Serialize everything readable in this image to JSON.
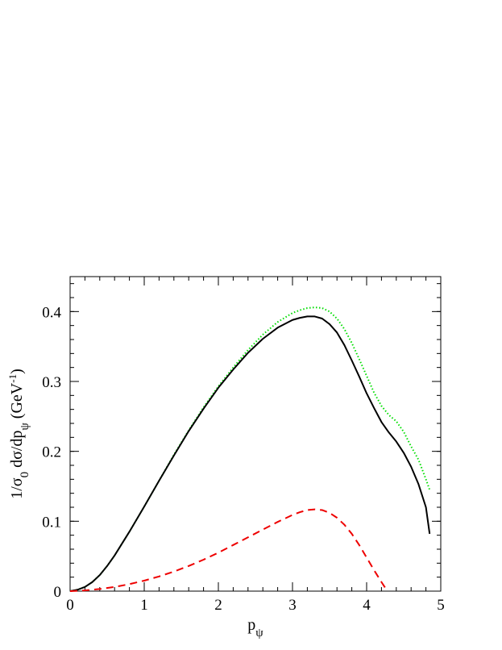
{
  "chart_data": {
    "type": "line",
    "title": "",
    "xlabel": {
      "text": "p",
      "sub": "ψ"
    },
    "ylabel": {
      "parts": [
        {
          "t": "1/σ",
          "s": "normal"
        },
        {
          "t": "0",
          "s": "sub"
        },
        {
          "t": " dσ/dp",
          "s": "normal"
        },
        {
          "t": "ψ",
          "s": "sub"
        },
        {
          "t": " (GeV",
          "s": "normal"
        },
        {
          "t": "-1",
          "s": "sup"
        },
        {
          "t": ")",
          "s": "normal"
        }
      ]
    },
    "xlim": [
      0,
      5
    ],
    "ylim": [
      0,
      0.45
    ],
    "x_ticks": [
      0,
      1,
      2,
      3,
      4,
      5
    ],
    "x_tick_labels": [
      "0",
      "1",
      "2",
      "3",
      "4",
      "5"
    ],
    "y_ticks": [
      0,
      0.1,
      0.2,
      0.3,
      0.4
    ],
    "y_tick_labels": [
      "0",
      "0.1",
      "0.2",
      "0.3",
      "0.4"
    ],
    "x_minor_step": 0.2,
    "y_minor_step": 0.02,
    "grid": false,
    "legend": "none",
    "series": [
      {
        "color": "#00dd00",
        "dash": "dotted",
        "x": [
          0,
          0.1,
          0.2,
          0.3,
          0.4,
          0.5,
          0.6,
          0.7,
          0.8,
          0.9,
          1.0,
          1.2,
          1.4,
          1.6,
          1.8,
          2.0,
          2.2,
          2.4,
          2.6,
          2.8,
          3.0,
          3.1,
          3.2,
          3.3,
          3.4,
          3.5,
          3.6,
          3.7,
          3.8,
          3.9,
          4.0,
          4.1,
          4.2,
          4.3,
          4.4,
          4.5,
          4.6,
          4.7,
          4.8,
          4.85
        ],
        "y": [
          0,
          0.002,
          0.006,
          0.013,
          0.023,
          0.036,
          0.051,
          0.068,
          0.085,
          0.103,
          0.121,
          0.158,
          0.195,
          0.23,
          0.263,
          0.293,
          0.32,
          0.345,
          0.367,
          0.385,
          0.398,
          0.402,
          0.405,
          0.406,
          0.405,
          0.4,
          0.39,
          0.375,
          0.355,
          0.332,
          0.308,
          0.284,
          0.265,
          0.252,
          0.243,
          0.228,
          0.207,
          0.188,
          0.16,
          0.145
        ]
      },
      {
        "color": "#000000",
        "dash": "solid",
        "x": [
          0,
          0.1,
          0.2,
          0.3,
          0.4,
          0.5,
          0.6,
          0.7,
          0.8,
          0.9,
          1.0,
          1.2,
          1.4,
          1.6,
          1.8,
          2.0,
          2.2,
          2.4,
          2.6,
          2.8,
          3.0,
          3.1,
          3.2,
          3.3,
          3.4,
          3.5,
          3.6,
          3.7,
          3.8,
          3.9,
          4.0,
          4.1,
          4.2,
          4.3,
          4.4,
          4.5,
          4.6,
          4.7,
          4.8,
          4.85
        ],
        "y": [
          0,
          0.002,
          0.006,
          0.013,
          0.023,
          0.036,
          0.051,
          0.068,
          0.085,
          0.103,
          0.121,
          0.158,
          0.194,
          0.229,
          0.261,
          0.291,
          0.317,
          0.341,
          0.361,
          0.377,
          0.388,
          0.391,
          0.393,
          0.393,
          0.39,
          0.382,
          0.37,
          0.352,
          0.33,
          0.307,
          0.283,
          0.262,
          0.242,
          0.227,
          0.214,
          0.198,
          0.178,
          0.153,
          0.12,
          0.082
        ]
      },
      {
        "color": "#ee0000",
        "dash": "dashed",
        "x": [
          0,
          0.2,
          0.4,
          0.6,
          0.8,
          1.0,
          1.2,
          1.4,
          1.6,
          1.8,
          2.0,
          2.2,
          2.4,
          2.6,
          2.8,
          3.0,
          3.1,
          3.2,
          3.3,
          3.4,
          3.5,
          3.6,
          3.7,
          3.8,
          3.9,
          4.0,
          4.1,
          4.2,
          4.28
        ],
        "y": [
          0,
          0.001,
          0.003,
          0.006,
          0.01,
          0.015,
          0.021,
          0.028,
          0.036,
          0.045,
          0.055,
          0.066,
          0.077,
          0.088,
          0.099,
          0.109,
          0.113,
          0.116,
          0.117,
          0.116,
          0.112,
          0.105,
          0.095,
          0.082,
          0.066,
          0.048,
          0.03,
          0.013,
          0.0
        ]
      }
    ]
  }
}
